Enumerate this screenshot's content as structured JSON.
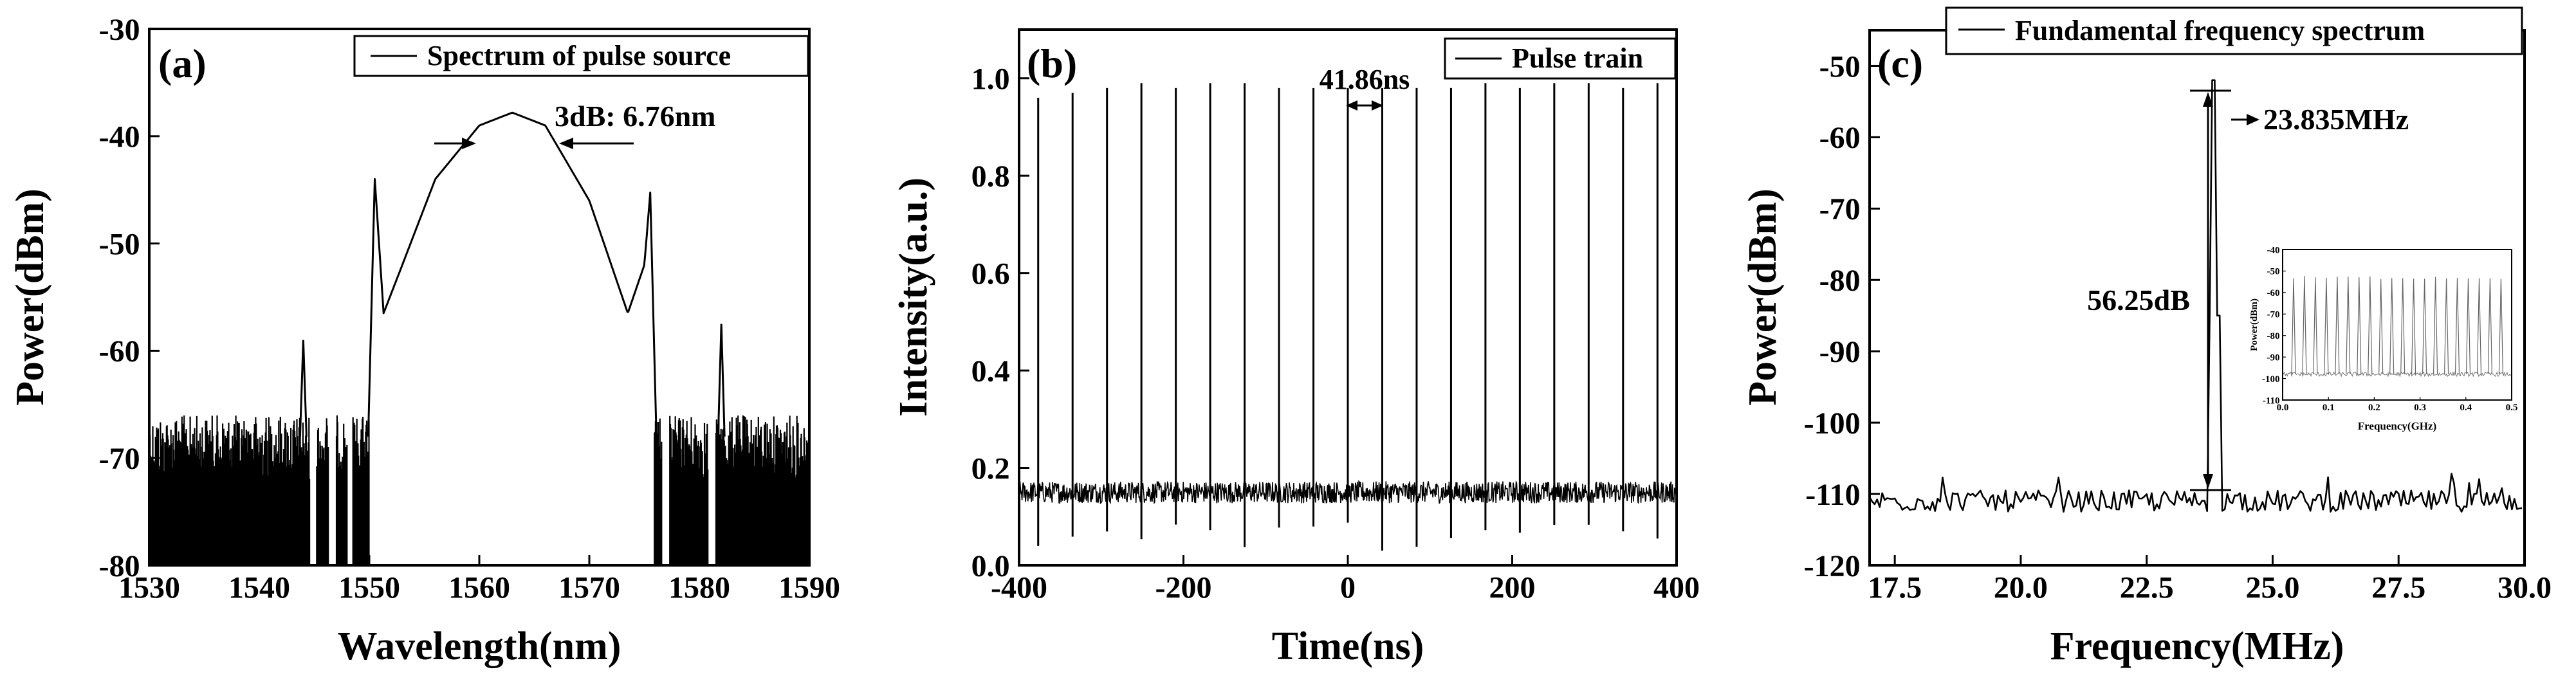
{
  "chart_data": [
    {
      "type": "line",
      "panel_label": "(a)",
      "title": "",
      "xlabel": "Wavelength(nm)",
      "ylabel": "Power(dBm)",
      "xlim": [
        1530,
        1590
      ],
      "ylim": [
        -80,
        -30
      ],
      "xticks": [
        1530,
        1540,
        1550,
        1560,
        1570,
        1580,
        1590
      ],
      "yticks": [
        -80,
        -70,
        -60,
        -50,
        -40,
        -30
      ],
      "legend": [
        "Spectrum of pulse source"
      ],
      "legend_position": "top-right",
      "series": [
        {
          "name": "Spectrum of pulse source",
          "noise_floor_dBm": -69,
          "spectrum_x": [
            1550.5,
            1551.3,
            1553,
            1556,
            1560,
            1563,
            1566,
            1570,
            1573.5,
            1575.0,
            1575.6
          ],
          "spectrum_y": [
            -44,
            -56.5,
            -52,
            -44,
            -39,
            -37.8,
            -39,
            -46,
            -56.5,
            -52,
            -44.5
          ],
          "sidebands": [
            {
              "x": 1544,
              "y": -59
            },
            {
              "x": 1582,
              "y": -57.5
            }
          ]
        }
      ],
      "annotations": [
        {
          "text": "3dB: 6.76nm",
          "x1": 1559.6,
          "x2": 1566.4,
          "y": -40.5
        }
      ]
    },
    {
      "type": "line",
      "panel_label": "(b)",
      "title": "",
      "xlabel": "Time(ns)",
      "ylabel": "Intensity(a.u.)",
      "xlim": [
        -400,
        400
      ],
      "ylim": [
        0.0,
        1.1
      ],
      "xticks": [
        -400,
        -200,
        0,
        200,
        400
      ],
      "yticks": [
        0.0,
        0.2,
        0.4,
        0.6,
        0.8,
        1.0
      ],
      "ytick_labels": [
        "0.0",
        "0.2",
        "0.4",
        "0.6",
        "0.8",
        "1.0"
      ],
      "legend": [
        "Pulse train"
      ],
      "legend_position": "top-right",
      "series": [
        {
          "name": "Pulse train",
          "pulse_period_ns": 41.86,
          "baseline": 0.15,
          "pulse_times_ns": [
            -376.74,
            -334.88,
            -293.02,
            -251.16,
            -209.3,
            -167.44,
            -125.58,
            -83.72,
            -41.86,
            0,
            41.86,
            83.72,
            125.58,
            167.44,
            209.3,
            251.16,
            293.02,
            334.88,
            376.74
          ],
          "pulse_peaks": [
            0.96,
            0.97,
            0.98,
            0.99,
            0.98,
            0.99,
            0.99,
            0.98,
            0.98,
            0.98,
            0.98,
            0.98,
            0.98,
            0.99,
            0.98,
            0.99,
            0.99,
            0.98,
            0.99
          ]
        }
      ],
      "annotations": [
        {
          "text": "41.86ns",
          "x1": 0,
          "x2": 41.86,
          "y": 0.99
        }
      ]
    },
    {
      "type": "line",
      "panel_label": "(c)",
      "title": "",
      "xlabel": "Frequency(MHz)",
      "ylabel": "Power(dBm)",
      "xlim": [
        17.0,
        30.0
      ],
      "ylim": [
        -120,
        -45
      ],
      "xticks": [
        17.5,
        20.0,
        22.5,
        25.0,
        27.5,
        30.0
      ],
      "xtick_labels": [
        "17.5",
        "20.0",
        "22.5",
        "25.0",
        "27.5",
        "30.0"
      ],
      "yticks": [
        -120,
        -110,
        -100,
        -90,
        -80,
        -70,
        -60,
        -50
      ],
      "legend": [
        "Fundamental frequency spectrum"
      ],
      "legend_position": "top",
      "series": [
        {
          "name": "Fundamental frequency spectrum",
          "noise_floor_dBm": -111,
          "peak": {
            "x": 23.835,
            "y": -52
          }
        }
      ],
      "annotations": [
        {
          "text": "23.835MHz",
          "x": 23.835,
          "y": -52
        },
        {
          "text": "56.25dB",
          "from_y": -108.25,
          "to_y": -52
        }
      ],
      "inset": {
        "type": "line",
        "xlabel": "Frequency(GHz)",
        "ylabel": "Power(dBm)",
        "xlim": [
          0.0,
          0.5
        ],
        "ylim": [
          -110,
          -40
        ],
        "xticks": [
          0.0,
          0.1,
          0.2,
          0.3,
          0.4,
          0.5
        ],
        "xtick_labels": [
          "0.0",
          "0.1",
          "0.2",
          "0.3",
          "0.4",
          "0.5"
        ],
        "yticks": [
          -110,
          -100,
          -90,
          -80,
          -70,
          -60,
          -50,
          -40
        ],
        "harmonic_spacing_GHz": 0.023835,
        "harmonic_peak_dBm": -53,
        "floor_dBm": -98
      }
    }
  ]
}
